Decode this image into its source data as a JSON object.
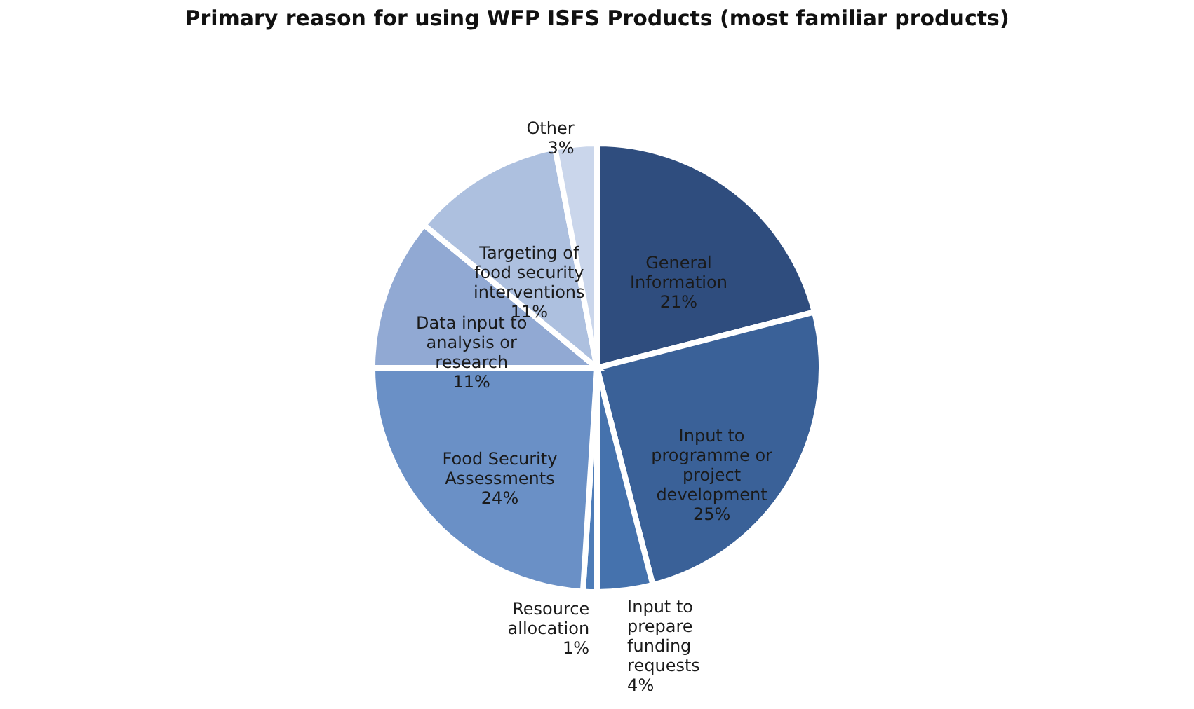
{
  "chart_data": {
    "type": "pie",
    "title": "Primary reason for using WFP ISFS Products (most familiar products)",
    "categories": [
      "General Information",
      "Input to programme or project development",
      "Input to prepare funding requests",
      "Resource allocation",
      "Food Security Assessments",
      "Data input to analysis or research",
      "Targeting of food security interventions",
      "Other"
    ],
    "values": [
      21,
      25,
      4,
      1,
      24,
      11,
      11,
      3
    ],
    "value_labels": [
      "21%",
      "25%",
      "4%",
      "1%",
      "24%",
      "11%",
      "11%",
      "3%"
    ],
    "colors": [
      "#2f4d7e",
      "#3a6198",
      "#4572ad",
      "#4d7cb8",
      "#6a90c6",
      "#91a9d3",
      "#adc0df",
      "#cad6eb"
    ],
    "data_labels": true
  }
}
